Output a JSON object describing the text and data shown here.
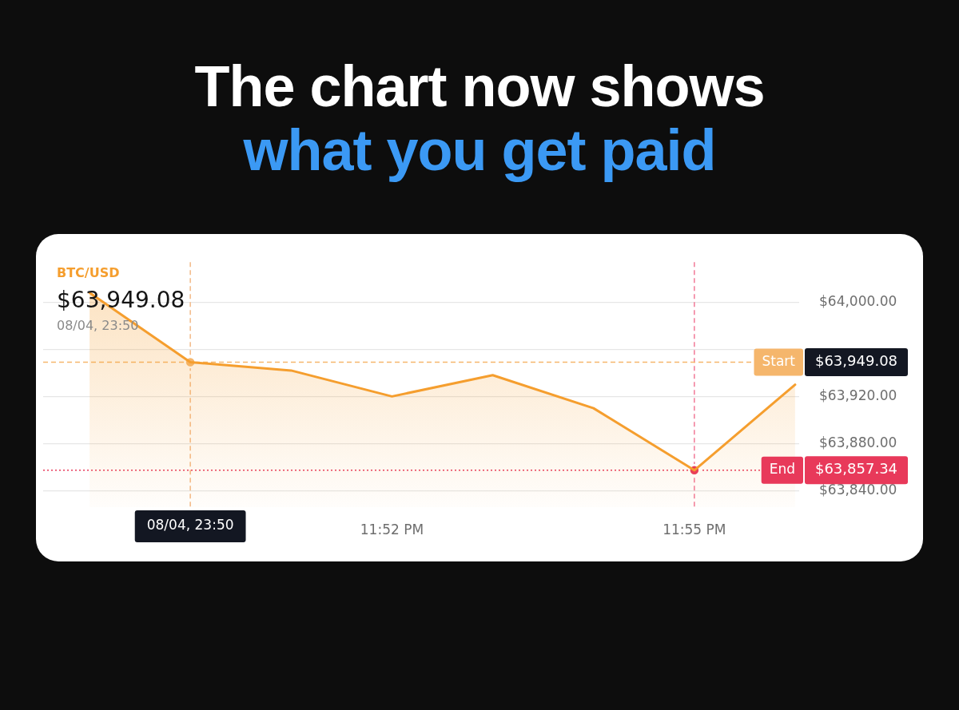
{
  "chart_data": {
    "type": "area",
    "title": "The chart now shows",
    "subtitle": "what you get paid",
    "series": [
      {
        "name": "BTC/USD",
        "color": "#f59e2e",
        "x": [
          23.81667,
          23.83333,
          23.85,
          23.86667,
          23.88333,
          23.9,
          23.91667,
          23.93333
        ],
        "values": [
          64008,
          63949.08,
          63942,
          63920,
          63938,
          63910,
          63857.34,
          63930
        ]
      },
      {
        "type": "scatter",
        "colors": [
          "#f5b66c",
          "#e8395a"
        ],
        "marker": "circle",
        "x": [
          23.83333,
          23.91667
        ],
        "values": [
          63949.08,
          63857.34
        ]
      }
    ],
    "xlim": [
      23.809,
      23.934
    ],
    "xticks": [
      {
        "value": 23.86667,
        "label": "11:52 PM"
      },
      {
        "value": 23.91667,
        "label": "11:55 PM"
      }
    ],
    "ylim": [
      63826,
      64034
    ],
    "yticks": [
      {
        "value": 64000,
        "label": "$64,000.00"
      },
      {
        "value": 63960,
        "label": null
      },
      {
        "value": 63920,
        "label": "$63,920.00"
      },
      {
        "value": 63880,
        "label": "$63,880.00"
      },
      {
        "value": 63840,
        "label": "$63,840.00"
      }
    ],
    "grid": "y",
    "ref_lines": [
      {
        "axis": "x",
        "value": 23.83333,
        "color": "#f2b47e",
        "line_style": "dashed"
      },
      {
        "axis": "x",
        "value": 23.91667,
        "color": "#f07090",
        "line_style": "dashed"
      },
      {
        "axis": "y",
        "value": 63949.08,
        "label": "Start",
        "color": "#f5b66c",
        "line_style": "dashed"
      },
      {
        "axis": "y",
        "value": 63857.34,
        "label": "End",
        "color": "#e8395a",
        "line_style": "dotted"
      }
    ],
    "annotations": [
      "$63,949.08",
      "08/04, 23:50",
      "08/04, 23:50",
      "$63,949.08",
      "$63,857.34"
    ]
  }
}
